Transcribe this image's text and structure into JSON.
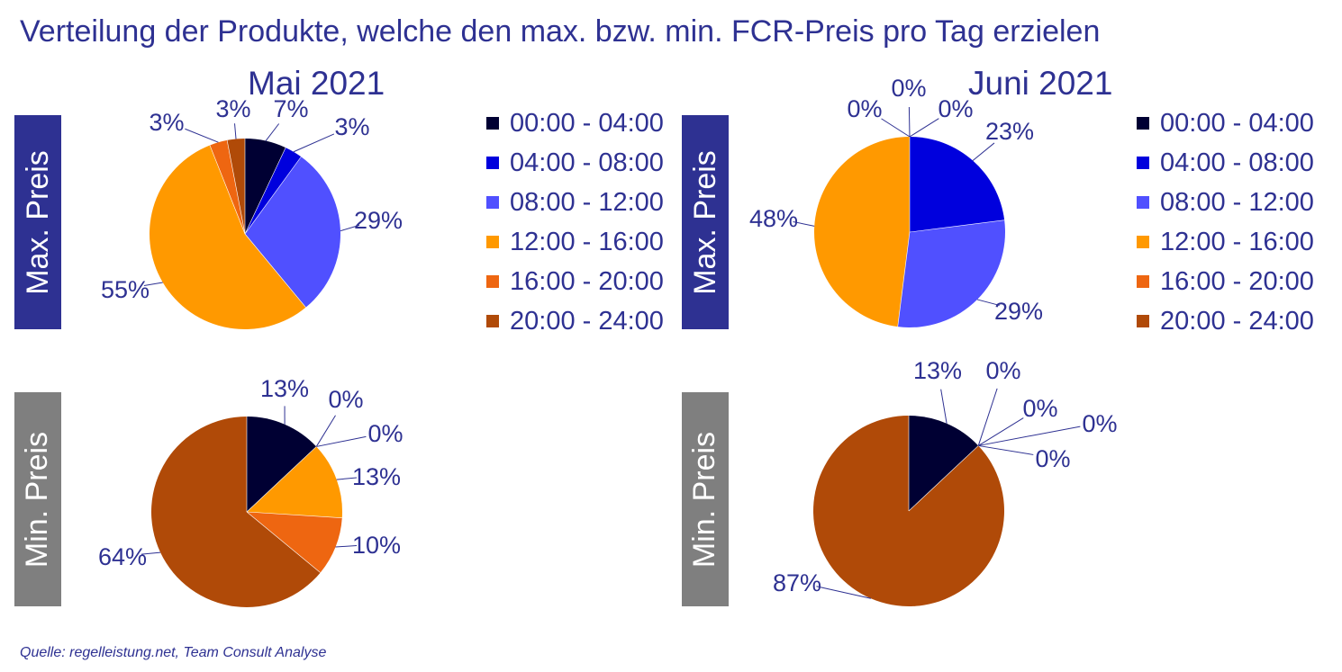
{
  "title": "Verteilung der Produkte, welche den max. bzw. min. FCR-Preis pro Tag erzielen",
  "months": [
    "Mai 2021",
    "Juni 2021"
  ],
  "rows": [
    "Max. Preis",
    "Min. Preis"
  ],
  "legend": [
    {
      "label": "00:00 - 04:00",
      "color": "#000033"
    },
    {
      "label": "04:00 - 08:00",
      "color": "#0000DD"
    },
    {
      "label": "08:00 - 12:00",
      "color": "#5050FF"
    },
    {
      "label": "12:00 - 16:00",
      "color": "#FF9900"
    },
    {
      "label": "16:00 - 20:00",
      "color": "#EE6611"
    },
    {
      "label": "20:00 - 24:00",
      "color": "#B04A08"
    }
  ],
  "source": "Quelle: regelleistung.net, Team Consult Analyse",
  "chart_data": [
    {
      "type": "pie",
      "title": "Mai 2021",
      "ylabel": "Max. Preis",
      "categories": [
        "00:00 - 04:00",
        "04:00 - 08:00",
        "08:00 - 12:00",
        "12:00 - 16:00",
        "16:00 - 20:00",
        "20:00 - 24:00"
      ],
      "values": [
        7,
        3,
        29,
        55,
        3,
        3
      ],
      "labels": [
        "7%",
        "3%",
        "29%",
        "55%",
        "3%",
        "3%"
      ]
    },
    {
      "type": "pie",
      "title": "Juni 2021",
      "ylabel": "Max. Preis",
      "categories": [
        "00:00 - 04:00",
        "04:00 - 08:00",
        "08:00 - 12:00",
        "12:00 - 16:00",
        "16:00 - 20:00",
        "20:00 - 24:00"
      ],
      "values": [
        0,
        23,
        29,
        48,
        0,
        0
      ],
      "labels": [
        "0%",
        "23%",
        "29%",
        "48%",
        "0%",
        "0%"
      ]
    },
    {
      "type": "pie",
      "title": "Mai 2021",
      "ylabel": "Min. Preis",
      "categories": [
        "00:00 - 04:00",
        "04:00 - 08:00",
        "08:00 - 12:00",
        "12:00 - 16:00",
        "16:00 - 20:00",
        "20:00 - 24:00"
      ],
      "values": [
        13,
        0,
        0,
        13,
        10,
        64
      ],
      "labels": [
        "13%",
        "0%",
        "0%",
        "13%",
        "10%",
        "64%"
      ]
    },
    {
      "type": "pie",
      "title": "Juni 2021",
      "ylabel": "Min. Preis",
      "categories": [
        "00:00 - 04:00",
        "04:00 - 08:00",
        "08:00 - 12:00",
        "12:00 - 16:00",
        "16:00 - 20:00",
        "20:00 - 24:00"
      ],
      "values": [
        13,
        0,
        0,
        0,
        0,
        87
      ],
      "labels": [
        "13%",
        "0%",
        "0%",
        "0%",
        "0%",
        "87%"
      ]
    }
  ]
}
